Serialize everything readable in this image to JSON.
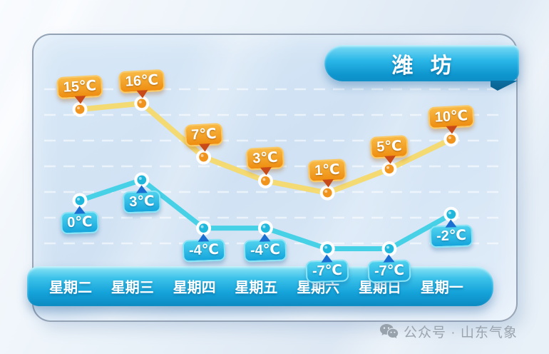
{
  "header": {
    "city": "潍 坊"
  },
  "watermark": {
    "text": "公众号 · 山东气象",
    "icon": "wechat-icon",
    "color": "#9aa4ae"
  },
  "chart_data": {
    "type": "line",
    "title": "潍坊",
    "categories": [
      "星期二",
      "星期三",
      "星期四",
      "星期五",
      "星期六",
      "星期日",
      "星期一"
    ],
    "series": [
      {
        "name": "high-temperature",
        "values": [
          15,
          16,
          7,
          3,
          1,
          5,
          10
        ],
        "unit": "℃",
        "line_color": "#f6d96a",
        "point_color": "#f0941d",
        "label_bg_top": "#f8b944",
        "label_bg_bottom": "#ee8d10",
        "label_border": "#f9c966",
        "pointer_color": "#c84a18"
      },
      {
        "name": "low-temperature",
        "values": [
          0,
          3,
          -4,
          -4,
          -7,
          -7,
          -2
        ],
        "unit": "℃",
        "line_color": "#3ed0e6",
        "point_color": "#1fb8dc",
        "label_bg_top": "#4fd2ee",
        "label_bg_bottom": "#15a5dc",
        "label_border": "#8ae3f5",
        "pointer_color": "#1b6fd0"
      }
    ],
    "grid": "dashed-horizontal-white",
    "legend": "none",
    "x_axis_position": "bottom",
    "accent_colors": {
      "ribbon": "#18aadf",
      "week_bar": "#14a3da"
    }
  }
}
